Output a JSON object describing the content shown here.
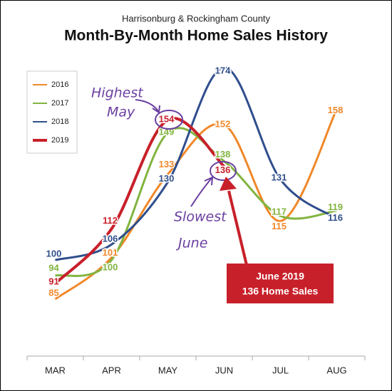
{
  "chart_data": {
    "type": "line",
    "subtitle": "Harrisonburg & Rockingham County",
    "title": "Month-By-Month Home Sales History",
    "categories": [
      "MAR",
      "APR",
      "MAY",
      "JUN",
      "JUL",
      "AUG"
    ],
    "series": [
      {
        "name": "2016",
        "color": "#f0882a",
        "values": [
          85,
          101,
          133,
          152,
          115,
          158
        ]
      },
      {
        "name": "2017",
        "color": "#82b440",
        "values": [
          94,
          100,
          149,
          138,
          117,
          119
        ]
      },
      {
        "name": "2018",
        "color": "#2f4e8c",
        "values": [
          100,
          106,
          130,
          174,
          131,
          116
        ]
      },
      {
        "name": "2019",
        "color": "#c8202a",
        "values": [
          91,
          112,
          154,
          136,
          null,
          null
        ]
      }
    ],
    "ylim": [
      65,
      180
    ],
    "annotations": [
      "Highest",
      "May",
      "Slowest",
      "June"
    ],
    "callout": [
      "June 2019",
      "136 Home Sales"
    ]
  }
}
